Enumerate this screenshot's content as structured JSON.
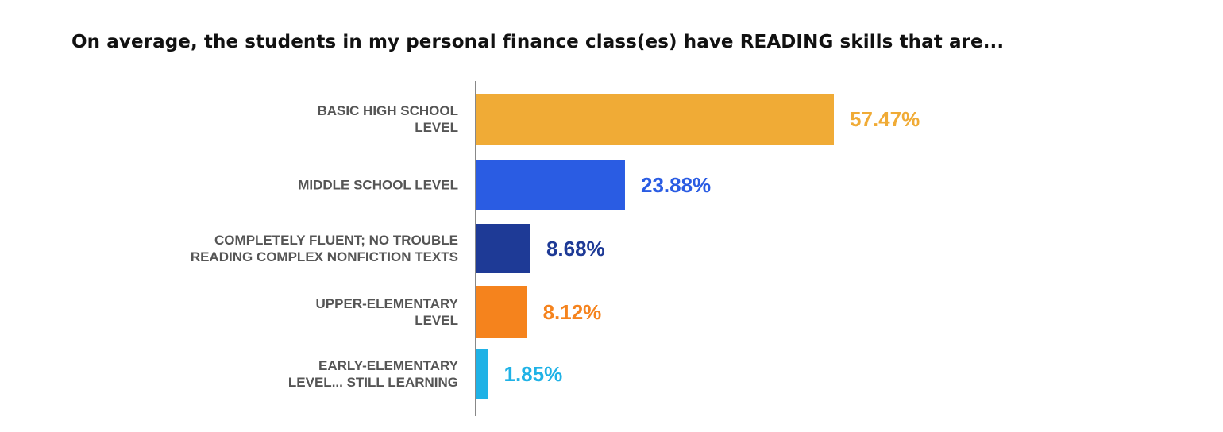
{
  "chart_data": {
    "type": "bar",
    "orientation": "horizontal",
    "title": "On average, the students in my personal finance class(es) have READING skills that are...",
    "categories": [
      [
        "BASIC HIGH SCHOOL",
        "LEVEL"
      ],
      [
        "MIDDLE SCHOOL LEVEL"
      ],
      [
        "COMPLETELY FLUENT; NO TROUBLE",
        "READING COMPLEX NONFICTION TEXTS"
      ],
      [
        "UPPER-ELEMENTARY",
        "LEVEL"
      ],
      [
        "EARLY-ELEMENTARY",
        "LEVEL... STILL LEARNING"
      ]
    ],
    "values": [
      57.47,
      23.88,
      8.68,
      8.12,
      1.85
    ],
    "value_labels": [
      "57.47%",
      "23.88%",
      "8.68%",
      "8.12%",
      "1.85%"
    ],
    "colors": [
      "#F0AB36",
      "#2A5CE3",
      "#1E3A96",
      "#F5831D",
      "#1FB2E6"
    ],
    "xlim": [
      0,
      57.47
    ],
    "grid": false,
    "legend": "none"
  }
}
